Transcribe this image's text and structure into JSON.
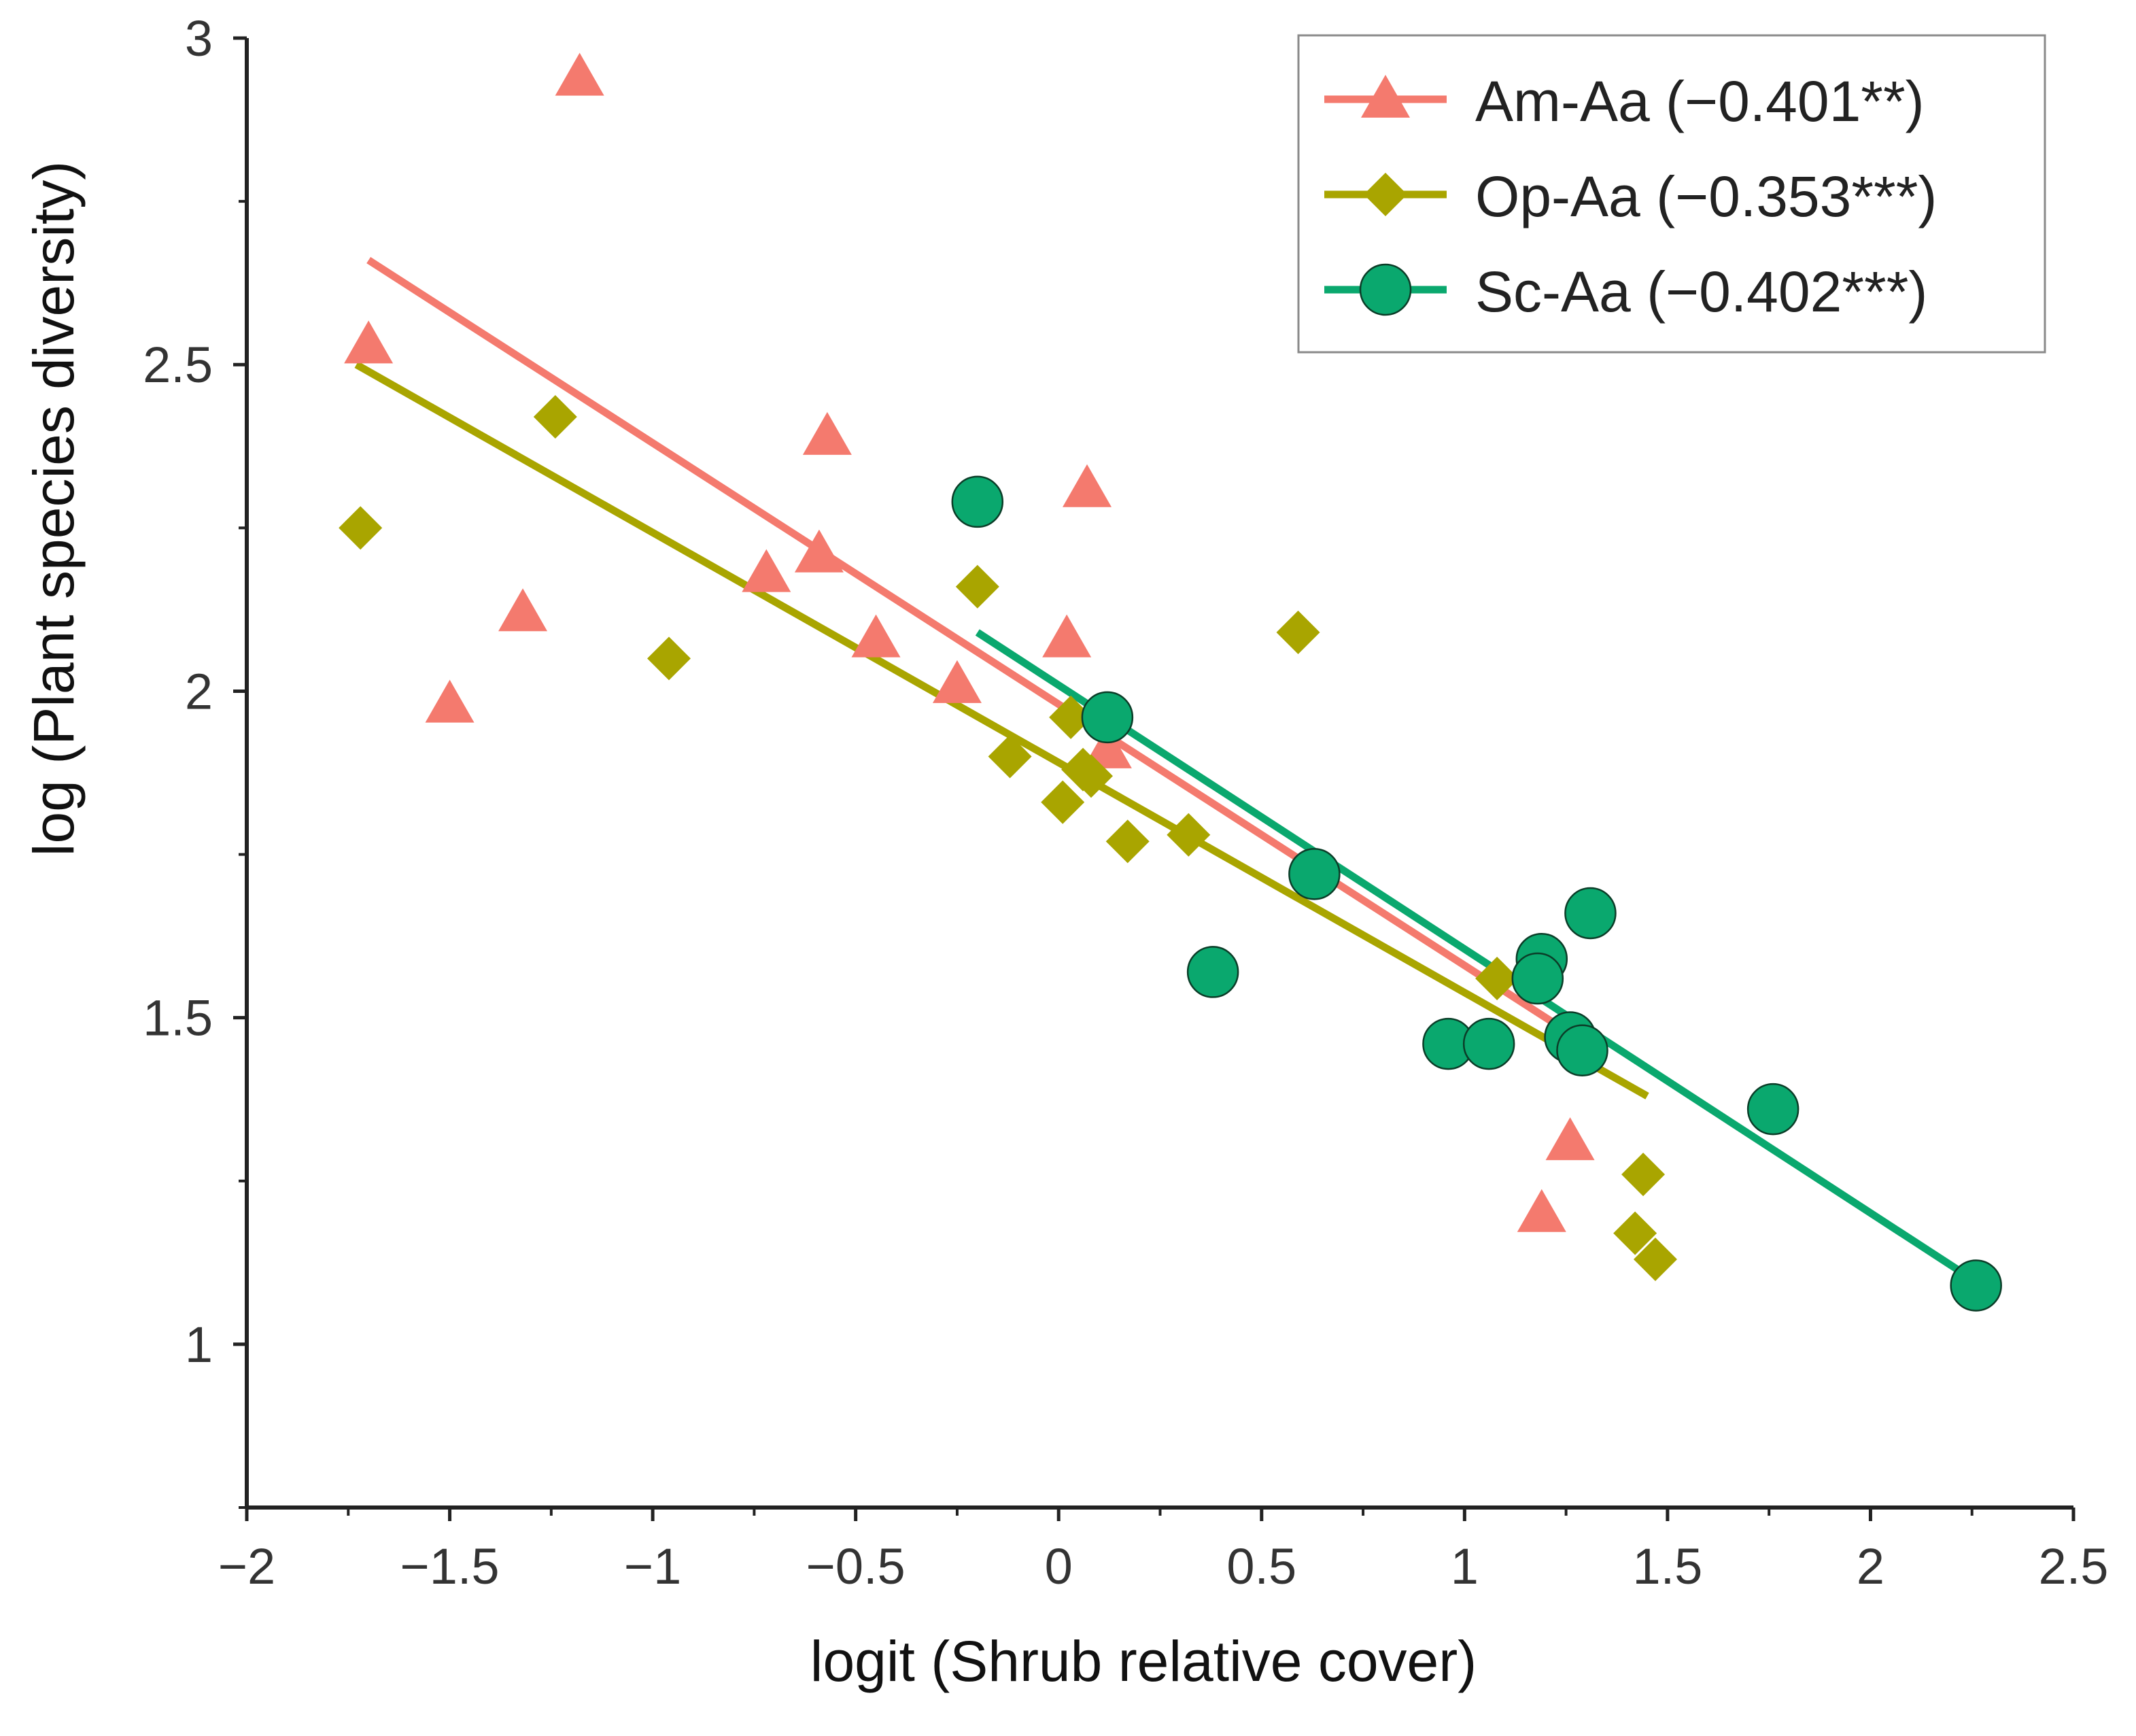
{
  "chart_data": {
    "type": "scatter",
    "xlabel": "logit (Shrub relative cover)",
    "ylabel": "log (Plant species diversity)",
    "xlim": [
      -2,
      2.5
    ],
    "ylim": [
      0.75,
      3
    ],
    "xticks": [
      -2,
      -1.5,
      -1,
      -0.5,
      0,
      0.5,
      1,
      1.5,
      2,
      2.5
    ],
    "xtick_labels": [
      "−2",
      "−1.5",
      "−1",
      "−0.5",
      "0",
      "0.5",
      "1",
      "1.5",
      "2",
      "2.5"
    ],
    "yticks": [
      1,
      1.5,
      2,
      2.5,
      3
    ],
    "ytick_labels": [
      "1",
      "1.5",
      "2",
      "2.5",
      "3"
    ],
    "legend_position": "top-right",
    "series": [
      {
        "name": "Am-Aa",
        "legend_label": "Am-Aa (−0.401**)",
        "marker": "triangle",
        "color": "#F47A6E",
        "points": [
          [
            -1.18,
            2.94
          ],
          [
            -1.7,
            2.53
          ],
          [
            -0.57,
            2.39
          ],
          [
            0.07,
            2.31
          ],
          [
            -0.59,
            2.21
          ],
          [
            -0.72,
            2.18
          ],
          [
            -1.32,
            2.12
          ],
          [
            -0.45,
            2.08
          ],
          [
            0.02,
            2.08
          ],
          [
            -1.5,
            1.98
          ],
          [
            -0.25,
            2.01
          ],
          [
            0.12,
            1.91
          ],
          [
            1.26,
            1.31
          ],
          [
            1.19,
            1.2
          ]
        ],
        "fit": {
          "x": [
            -1.7,
            1.25
          ],
          "y": [
            2.66,
            1.48
          ]
        }
      },
      {
        "name": "Op-Aa",
        "legend_label": "Op-Aa (−0.353***)",
        "marker": "diamond",
        "color": "#A9A500",
        "points": [
          [
            -1.24,
            2.42
          ],
          [
            -1.72,
            2.25
          ],
          [
            -0.2,
            2.16
          ],
          [
            0.59,
            2.09
          ],
          [
            -0.96,
            2.05
          ],
          [
            0.03,
            1.96
          ],
          [
            -0.12,
            1.9
          ],
          [
            0.08,
            1.87
          ],
          [
            0.06,
            1.88
          ],
          [
            0.01,
            1.83
          ],
          [
            0.17,
            1.77
          ],
          [
            0.32,
            1.78
          ],
          [
            1.08,
            1.56
          ],
          [
            1.44,
            1.26
          ],
          [
            1.42,
            1.17
          ],
          [
            1.47,
            1.13
          ]
        ],
        "fit": {
          "x": [
            -1.73,
            1.45
          ],
          "y": [
            2.5,
            1.38
          ]
        }
      },
      {
        "name": "Sc-Aa",
        "legend_label": "Sc-Aa (−0.402***)",
        "marker": "circle",
        "color": "#0AA86E",
        "points": [
          [
            -0.2,
            2.29
          ],
          [
            0.12,
            1.96
          ],
          [
            0.63,
            1.72
          ],
          [
            1.31,
            1.66
          ],
          [
            1.19,
            1.59
          ],
          [
            1.18,
            1.56
          ],
          [
            0.38,
            1.57
          ],
          [
            0.96,
            1.46
          ],
          [
            1.06,
            1.46
          ],
          [
            1.26,
            1.47
          ],
          [
            1.29,
            1.45
          ],
          [
            1.76,
            1.36
          ],
          [
            2.26,
            1.09
          ]
        ],
        "fit": {
          "x": [
            -0.2,
            2.25
          ],
          "y": [
            2.09,
            1.1
          ]
        }
      }
    ]
  }
}
